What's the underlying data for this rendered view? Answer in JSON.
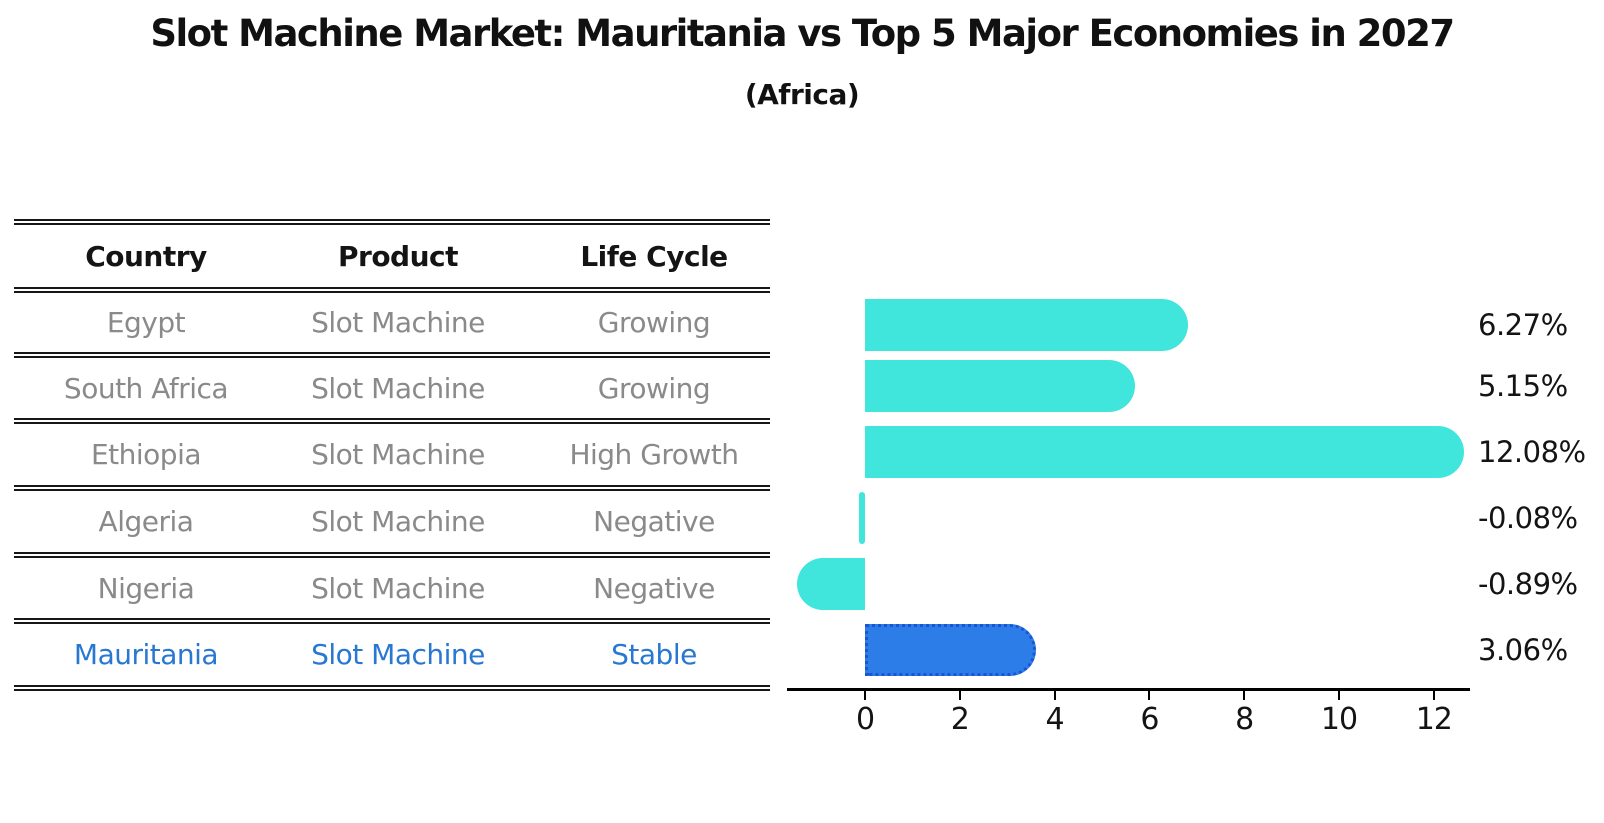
{
  "title": "Slot Machine Market: Mauritania vs Top 5 Major Economies in 2027",
  "subtitle": "(Africa)",
  "table": {
    "headers": [
      "Country",
      "Product",
      "Life Cycle"
    ],
    "rows": [
      {
        "country": "Egypt",
        "product": "Slot Machine",
        "life_cycle": "Growing",
        "highlight": false
      },
      {
        "country": "South Africa",
        "product": "Slot Machine",
        "life_cycle": "Growing",
        "highlight": false
      },
      {
        "country": "Ethiopia",
        "product": "Slot Machine",
        "life_cycle": "High Growth",
        "highlight": false
      },
      {
        "country": "Algeria",
        "product": "Slot Machine",
        "life_cycle": "Negative",
        "highlight": false
      },
      {
        "country": "Nigeria",
        "product": "Slot Machine",
        "life_cycle": "Negative",
        "highlight": false
      },
      {
        "country": "Mauritania",
        "product": "Slot Machine",
        "life_cycle": "Stable",
        "highlight": true
      }
    ]
  },
  "chart_data": {
    "type": "bar",
    "orientation": "horizontal",
    "title": "Slot Machine Market: Mauritania vs Top 5 Major Economies in 2027 (Africa)",
    "categories": [
      "Egypt",
      "South Africa",
      "Ethiopia",
      "Algeria",
      "Nigeria",
      "Mauritania"
    ],
    "values": [
      6.27,
      5.15,
      12.08,
      -0.08,
      -0.89,
      3.06
    ],
    "value_labels": [
      "6.27%",
      "5.15%",
      "12.08%",
      "-0.08%",
      "-0.89%",
      "3.06%"
    ],
    "xticks": [
      0,
      2,
      4,
      6,
      8,
      10,
      12
    ],
    "xlim": [
      -1.65,
      12.75
    ],
    "xlabel": "",
    "ylabel": "",
    "grid": false,
    "legend": false,
    "highlight_index": 5
  },
  "colors": {
    "bar": "#40E5DC",
    "highlight_bar": "#2D7DE8",
    "highlight_bar_edge": "#1A55D4",
    "highlight_text": "#2878D2",
    "muted_text": "#8a8a8a",
    "dark_text": "#141414"
  }
}
